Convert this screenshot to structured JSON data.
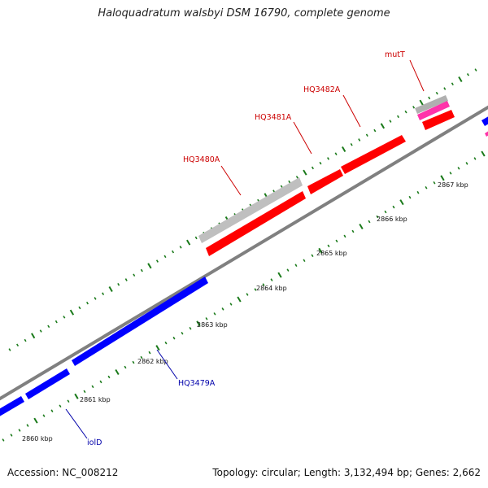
{
  "title": "Haloquadratum walsbyi DSM 16790, complete genome",
  "footer": {
    "accession": "Accession: NC_008212",
    "stats": "Topology: circular; Length: 3,132,494 bp; Genes: 2,662"
  },
  "colors": {
    "forward_gene": "#ff0000",
    "reverse_gene": "#0000ff",
    "other_gene": "#bfbfbf",
    "rna_gene": "#ff33aa",
    "backbone": "#808080",
    "tick": "#1a7a1a",
    "label_red": "#cc0000",
    "label_blue": "#0000aa"
  },
  "icons": [
    "genome-backbone-icon",
    "gene-arrow-icon",
    "tick-mark-icon"
  ],
  "kbp_labels": [
    "2860 kbp",
    "2861 kbp",
    "2862 kbp",
    "2863 kbp",
    "2864 kbp",
    "2865 kbp",
    "2866 kbp",
    "2867 kbp"
  ],
  "gene_labels": {
    "mutT": "mutT",
    "HQ3482A": "HQ3482A",
    "HQ3481A": "HQ3481A",
    "HQ3480A": "HQ3480A",
    "HQ3479A": "HQ3479A",
    "iolD": "iolD"
  }
}
